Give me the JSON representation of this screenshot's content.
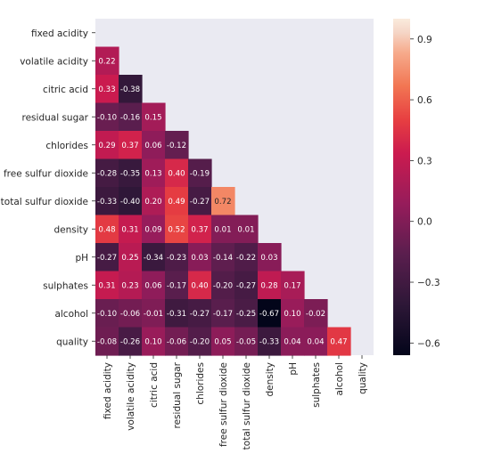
{
  "chart_data": {
    "type": "heatmap",
    "variables": [
      "fixed acidity",
      "volatile acidity",
      "citric acid",
      "residual sugar",
      "chlorides",
      "free sulfur dioxide",
      "total sulfur dioxide",
      "density",
      "pH",
      "sulphates",
      "alcohol",
      "quality"
    ],
    "mask": "upper-triangle-including-diagonal",
    "matrix": [
      [
        null,
        null,
        null,
        null,
        null,
        null,
        null,
        null,
        null,
        null,
        null,
        null
      ],
      [
        0.22,
        null,
        null,
        null,
        null,
        null,
        null,
        null,
        null,
        null,
        null,
        null
      ],
      [
        0.33,
        -0.38,
        null,
        null,
        null,
        null,
        null,
        null,
        null,
        null,
        null,
        null
      ],
      [
        -0.1,
        -0.16,
        0.15,
        null,
        null,
        null,
        null,
        null,
        null,
        null,
        null,
        null
      ],
      [
        0.29,
        0.37,
        0.06,
        -0.12,
        null,
        null,
        null,
        null,
        null,
        null,
        null,
        null
      ],
      [
        -0.28,
        -0.35,
        0.13,
        0.4,
        -0.19,
        null,
        null,
        null,
        null,
        null,
        null,
        null
      ],
      [
        -0.33,
        -0.4,
        0.2,
        0.49,
        -0.27,
        0.72,
        null,
        null,
        null,
        null,
        null,
        null
      ],
      [
        0.48,
        0.31,
        0.09,
        0.52,
        0.37,
        0.01,
        0.01,
        null,
        null,
        null,
        null,
        null
      ],
      [
        -0.27,
        0.25,
        -0.34,
        -0.23,
        0.03,
        -0.14,
        -0.22,
        0.03,
        null,
        null,
        null,
        null
      ],
      [
        0.31,
        0.23,
        0.06,
        -0.17,
        0.4,
        -0.2,
        -0.27,
        0.28,
        0.17,
        null,
        null,
        null
      ],
      [
        -0.1,
        -0.06,
        -0.01,
        -0.31,
        -0.27,
        -0.17,
        -0.25,
        -0.67,
        0.1,
        -0.02,
        null,
        null
      ],
      [
        -0.08,
        -0.26,
        0.1,
        -0.06,
        -0.2,
        0.05,
        -0.05,
        -0.33,
        0.04,
        0.04,
        0.47,
        null
      ]
    ],
    "value_format": "2 decimals",
    "colormap": "rocket",
    "vmin": -0.66,
    "vmax": 1.0,
    "colorbar_ticks": [
      0.9,
      0.6,
      0.3,
      0.0,
      -0.3,
      -0.6
    ],
    "colorbar_tick_labels": [
      "0.9",
      "0.6",
      "0.3",
      "0.0",
      "−0.3",
      "−0.6"
    ],
    "background_color": "#eaeaf2",
    "annotation_colors": {
      "on_dark": "#ffffff",
      "on_light": "#262626"
    },
    "title": "",
    "xlabel": "",
    "ylabel": ""
  }
}
